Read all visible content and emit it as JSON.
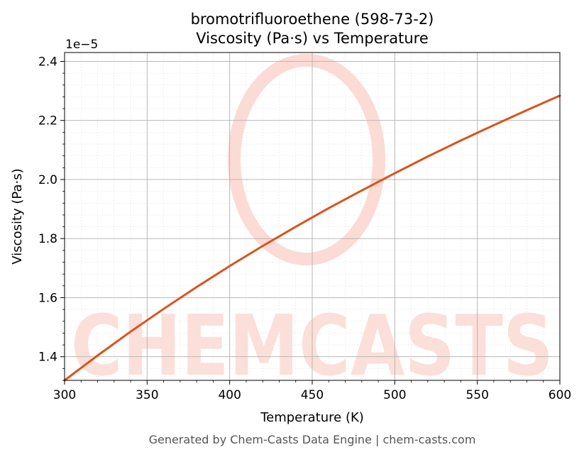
{
  "chart_data": {
    "type": "line",
    "title_line1": "bromotrifluoroethene (598-73-2)",
    "title_line2": "Viscosity (Pa·s) vs Temperature",
    "xlabel": "Temperature (K)",
    "ylabel": "Viscosity (Pa·s)",
    "y_offset_label": "1e−5",
    "footer": "Generated by Chem-Casts Data Engine | chem-casts.com",
    "watermark": "CHEMCASTS",
    "xlim": [
      300,
      600
    ],
    "ylim": [
      1.32,
      2.43
    ],
    "y_scale_exponent": -5,
    "grid": true,
    "x_ticks": [
      300,
      350,
      400,
      450,
      500,
      550,
      600
    ],
    "x_tick_labels": [
      "300",
      "350",
      "400",
      "450",
      "500",
      "550",
      "600"
    ],
    "y_ticks": [
      1.4,
      1.6,
      1.8,
      2.0,
      2.2,
      2.4
    ],
    "y_tick_labels": [
      "1.4",
      "1.6",
      "1.8",
      "2.0",
      "2.2",
      "2.4"
    ],
    "line_color": "#d9541e",
    "watermark_color": "#fcd5cc",
    "series": [
      {
        "x": [
          300,
          320,
          340,
          360,
          380,
          400,
          420,
          440,
          460,
          480,
          500,
          520,
          540,
          560,
          580,
          600
        ],
        "y": [
          1.32,
          1.404,
          1.485,
          1.562,
          1.636,
          1.707,
          1.775,
          1.84,
          1.903,
          1.963,
          2.021,
          2.078,
          2.132,
          2.184,
          2.235,
          2.284
        ]
      }
    ]
  }
}
